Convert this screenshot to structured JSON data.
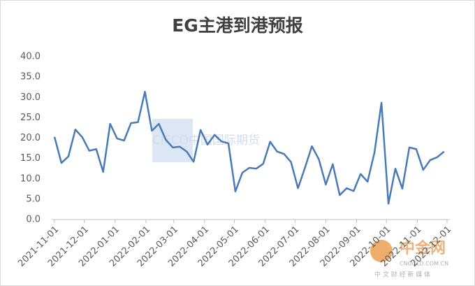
{
  "chart_data": {
    "type": "line",
    "title": "EG主港到港预报",
    "x": [
      "2021-11-01",
      "2021-11-08",
      "2021-11-15",
      "2021-11-22",
      "2021-11-29",
      "2021-12-06",
      "2021-12-13",
      "2021-12-20",
      "2021-12-27",
      "2022-01-03",
      "2022-01-10",
      "2022-01-17",
      "2022-01-24",
      "2022-01-31",
      "2022-02-07",
      "2022-02-14",
      "2022-02-21",
      "2022-02-28",
      "2022-03-07",
      "2022-03-14",
      "2022-03-21",
      "2022-03-28",
      "2022-04-04",
      "2022-04-11",
      "2022-04-18",
      "2022-04-25",
      "2022-05-02",
      "2022-05-09",
      "2022-05-16",
      "2022-05-23",
      "2022-05-30",
      "2022-06-06",
      "2022-06-13",
      "2022-06-20",
      "2022-06-27",
      "2022-07-04",
      "2022-07-11",
      "2022-07-18",
      "2022-07-25",
      "2022-08-01",
      "2022-08-08",
      "2022-08-15",
      "2022-08-22",
      "2022-08-29",
      "2022-09-05",
      "2022-09-12",
      "2022-09-19",
      "2022-09-26",
      "2022-10-03",
      "2022-10-10",
      "2022-10-17",
      "2022-10-24",
      "2022-10-31",
      "2022-11-07",
      "2022-11-14",
      "2022-11-21",
      "2022-11-28"
    ],
    "series": [
      {
        "color": "#4a7ab5",
        "values": [
          20.3,
          13.9,
          15.5,
          22.1,
          20.2,
          16.9,
          17.3,
          11.7,
          23.5,
          19.9,
          19.4,
          23.7,
          23.9,
          31.4,
          21.8,
          23.5,
          19.6,
          17.7,
          17.9,
          16.7,
          14.2,
          22.0,
          18.4,
          20.8,
          19.2,
          18.7,
          6.9,
          11.5,
          12.7,
          12.5,
          13.7,
          19.1,
          16.7,
          16.1,
          14.1,
          7.7,
          12.7,
          18.0,
          14.8,
          8.6,
          13.6,
          6.0,
          7.7,
          7.0,
          11.2,
          9.3,
          16.5,
          28.7,
          3.9,
          12.5,
          7.6,
          17.7,
          17.3,
          12.2,
          14.6,
          15.3,
          16.7
        ]
      }
    ],
    "xlim": [
      "2021-11-01",
      "2022-12-01"
    ],
    "xticks": [
      "2021-11-01",
      "2021-12-01",
      "2022-01-01",
      "2022-02-01",
      "2022-03-01",
      "2022-04-01",
      "2022-05-01",
      "2022-06-01",
      "2022-07-01",
      "2022-08-01",
      "2022-09-01",
      "2022-10-01",
      "2022-11-01",
      "2022-12-01"
    ],
    "ylim": [
      0,
      40
    ],
    "yticks": [
      {
        "value": 0,
        "label": "0.0"
      },
      {
        "value": 5,
        "label": "5.0"
      },
      {
        "value": 10,
        "label": "10.0"
      },
      {
        "value": 15,
        "label": "15.0"
      },
      {
        "value": 20,
        "label": "20.0"
      },
      {
        "value": 25,
        "label": "25.0"
      },
      {
        "value": 30,
        "label": "30.0"
      },
      {
        "value": 35,
        "label": "35.0"
      },
      {
        "value": 40,
        "label": "40.0"
      }
    ],
    "grid": false,
    "watermarks": [
      "CIFCO中国国际期货",
      "中金网",
      "CNGOLD.COM.CN",
      "中 文 财 经 新 媒 体"
    ]
  }
}
